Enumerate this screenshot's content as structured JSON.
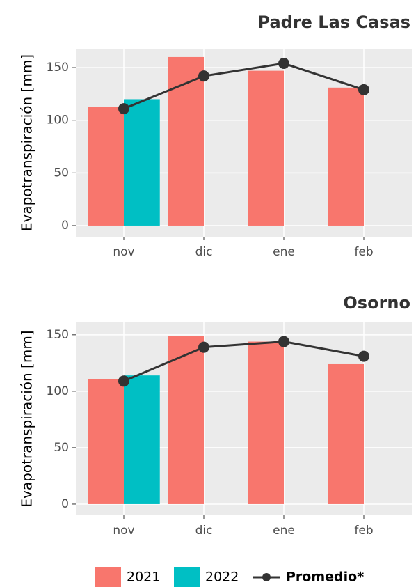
{
  "chart_data": [
    {
      "type": "bar",
      "title": "Padre Las Casas",
      "y_label": "Evapotranspiración [mm]",
      "categories": [
        "nov",
        "dic",
        "ene",
        "feb"
      ],
      "series": [
        {
          "name": "2021",
          "color": "#F8766D",
          "values": [
            113,
            160,
            147,
            131
          ]
        },
        {
          "name": "2022",
          "color": "#00BFC4",
          "values": [
            120,
            null,
            null,
            null
          ]
        },
        {
          "name": "Promedio*",
          "color": "#333333",
          "type": "line",
          "values": [
            111,
            142,
            154,
            129
          ]
        }
      ],
      "ylim": [
        -10.6,
        167.9
      ],
      "yticks": [
        0,
        50,
        100,
        150
      ],
      "grid": true
    },
    {
      "type": "bar",
      "title": "Osorno",
      "y_label": "Evapotranspiración [mm]",
      "categories": [
        "nov",
        "dic",
        "ene",
        "feb"
      ],
      "series": [
        {
          "name": "2021",
          "color": "#F8766D",
          "values": [
            111,
            149,
            144,
            124
          ]
        },
        {
          "name": "2022",
          "color": "#00BFC4",
          "values": [
            114,
            null,
            null,
            null
          ]
        },
        {
          "name": "Promedio*",
          "color": "#333333",
          "type": "line",
          "values": [
            109,
            139,
            144,
            131
          ]
        }
      ],
      "ylim": [
        -9.9,
        161
      ],
      "yticks": [
        0,
        50,
        100,
        150
      ],
      "grid": true
    }
  ]
}
